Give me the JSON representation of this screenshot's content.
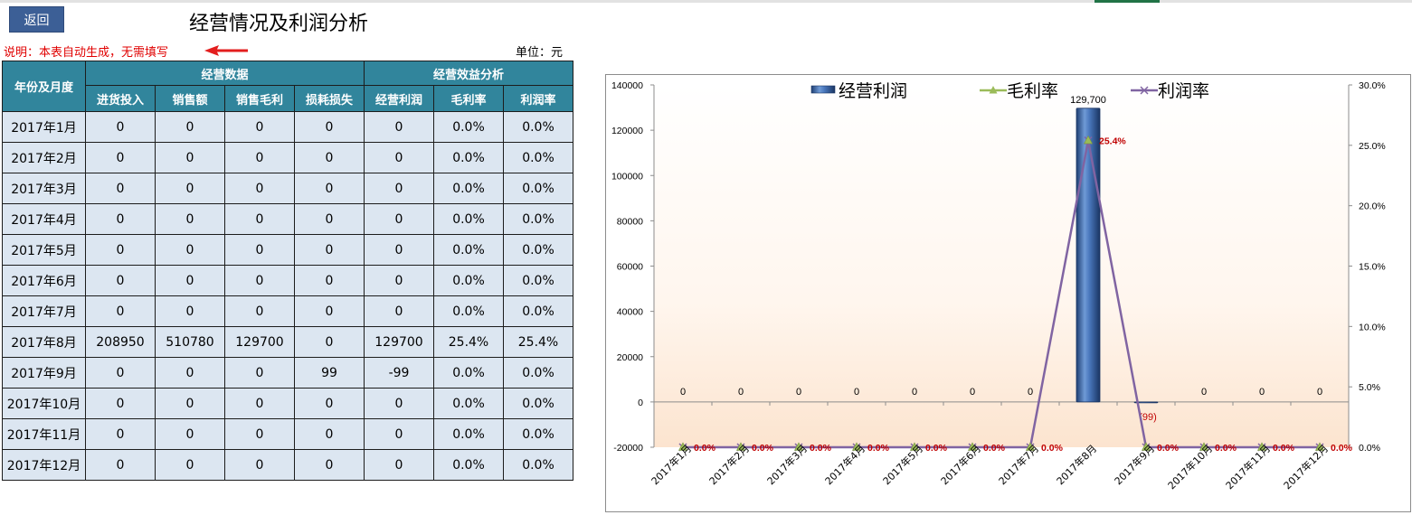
{
  "back_button": "返回",
  "title": "经营情况及利润分析",
  "note": "说明：本表自动生成，无需填写",
  "unit": "单位：元",
  "table": {
    "corner": "年份及月度",
    "group_headers": [
      "经营数据",
      "经营效益分析"
    ],
    "columns": [
      "进货投入",
      "销售额",
      "销售毛利",
      "损耗损失",
      "经营利润",
      "毛利率",
      "利润率"
    ],
    "rows": [
      {
        "month": "2017年1月",
        "cells": [
          "0",
          "0",
          "0",
          "0",
          "0",
          "0.0%",
          "0.0%"
        ]
      },
      {
        "month": "2017年2月",
        "cells": [
          "0",
          "0",
          "0",
          "0",
          "0",
          "0.0%",
          "0.0%"
        ]
      },
      {
        "month": "2017年3月",
        "cells": [
          "0",
          "0",
          "0",
          "0",
          "0",
          "0.0%",
          "0.0%"
        ]
      },
      {
        "month": "2017年4月",
        "cells": [
          "0",
          "0",
          "0",
          "0",
          "0",
          "0.0%",
          "0.0%"
        ]
      },
      {
        "month": "2017年5月",
        "cells": [
          "0",
          "0",
          "0",
          "0",
          "0",
          "0.0%",
          "0.0%"
        ]
      },
      {
        "month": "2017年6月",
        "cells": [
          "0",
          "0",
          "0",
          "0",
          "0",
          "0.0%",
          "0.0%"
        ]
      },
      {
        "month": "2017年7月",
        "cells": [
          "0",
          "0",
          "0",
          "0",
          "0",
          "0.0%",
          "0.0%"
        ]
      },
      {
        "month": "2017年8月",
        "cells": [
          "208950",
          "510780",
          "129700",
          "0",
          "129700",
          "25.4%",
          "25.4%"
        ]
      },
      {
        "month": "2017年9月",
        "cells": [
          "0",
          "0",
          "0",
          "99",
          "-99",
          "0.0%",
          "0.0%"
        ]
      },
      {
        "month": "2017年10月",
        "cells": [
          "0",
          "0",
          "0",
          "0",
          "0",
          "0.0%",
          "0.0%"
        ]
      },
      {
        "month": "2017年11月",
        "cells": [
          "0",
          "0",
          "0",
          "0",
          "0",
          "0.0%",
          "0.0%"
        ]
      },
      {
        "month": "2017年12月",
        "cells": [
          "0",
          "0",
          "0",
          "0",
          "0",
          "0.0%",
          "0.0%"
        ]
      }
    ]
  },
  "chart_data": {
    "type": "bar",
    "categories": [
      "2017年1月",
      "2017年2月",
      "2017年3月",
      "2017年4月",
      "2017年5月",
      "2017年6月",
      "2017年7月",
      "2017年8月",
      "2017年9月",
      "2017年10月",
      "2017年11月",
      "2017年12月"
    ],
    "category_tick_labels": [
      "2017年1月",
      "2017年2月",
      "2017年3月",
      "2017年4月",
      "2017年5月",
      "2017年6月",
      "2017年7月",
      "2017年8月",
      "2017年9月",
      "2017年10月",
      "2017年11月",
      "2017年12月"
    ],
    "series": [
      {
        "name": "经营利润",
        "type": "bar",
        "axis": "left",
        "values": [
          0,
          0,
          0,
          0,
          0,
          0,
          0,
          129700,
          -99,
          0,
          0,
          0
        ],
        "labels": [
          "0",
          "0",
          "0",
          "0",
          "0",
          "0",
          "0",
          "129,700",
          "(99)",
          "0",
          "0",
          "0"
        ],
        "color": "#4f81bd"
      },
      {
        "name": "毛利率",
        "type": "line",
        "axis": "right",
        "values": [
          0,
          0,
          0,
          0,
          0,
          0,
          0,
          25.4,
          0,
          0,
          0,
          0
        ],
        "labels": [
          "0.0%",
          "0.0%",
          "0.0%",
          "0.0%",
          "0.0%",
          "0.0%",
          "0.0%",
          "25.4%",
          "0.0%",
          "0.0%",
          "0.0%",
          "0.0%"
        ],
        "color": "#9bbb59"
      },
      {
        "name": "利润率",
        "type": "line",
        "axis": "right",
        "values": [
          0,
          0,
          0,
          0,
          0,
          0,
          0,
          25.4,
          0,
          0,
          0,
          0
        ],
        "color": "#8064a2"
      }
    ],
    "y_left": {
      "min": -20000,
      "max": 140000,
      "ticks": [
        "-20000",
        "0",
        "20000",
        "40000",
        "60000",
        "80000",
        "100000",
        "120000",
        "140000"
      ]
    },
    "y_right": {
      "min": 0,
      "max": 30,
      "ticks": [
        "0.0%",
        "5.0%",
        "10.0%",
        "15.0%",
        "20.0%",
        "25.0%",
        "30.0%"
      ]
    },
    "legend_position": "top",
    "grid": false,
    "label_color": "#c00000"
  }
}
